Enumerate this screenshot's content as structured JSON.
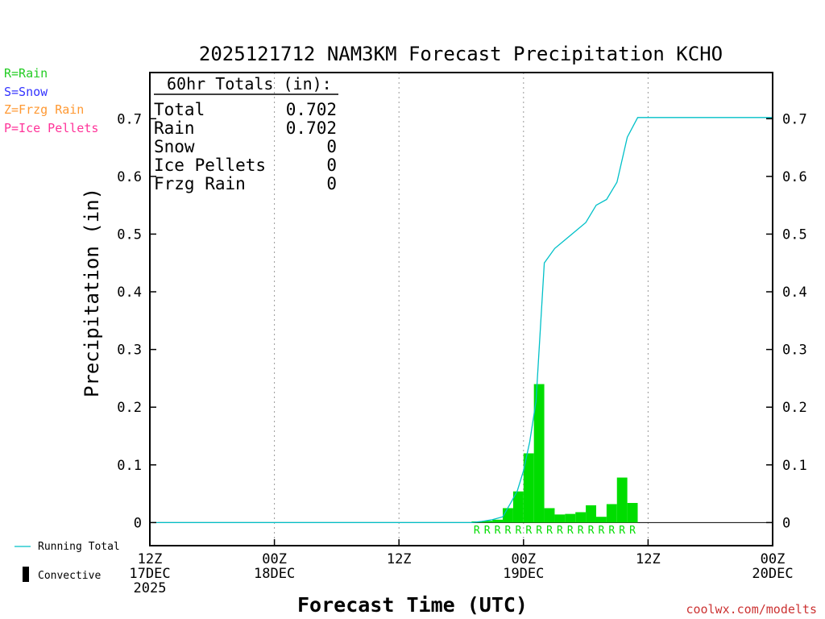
{
  "chart_data": {
    "type": "bar",
    "title": "2025121712 NAM3KM Forecast Precipitation KCHO",
    "xlabel": "Forecast Time (UTC)",
    "ylabel": "Precipitation (in)",
    "ylim": [
      -0.04,
      0.78
    ],
    "xlim_hours": [
      0,
      60
    ],
    "y_ticks": [
      0,
      0.1,
      0.2,
      0.3,
      0.4,
      0.5,
      0.6,
      0.7
    ],
    "y_tick_labels": [
      "0",
      "0.1",
      "0.2",
      "0.3",
      "0.4",
      "0.5",
      "0.6",
      "0.7"
    ],
    "x_ticks": [
      {
        "hour": 0,
        "lines": [
          "12Z",
          "17DEC",
          "2025"
        ]
      },
      {
        "hour": 12,
        "lines": [
          "00Z",
          "18DEC"
        ]
      },
      {
        "hour": 24,
        "lines": [
          "12Z"
        ]
      },
      {
        "hour": 36,
        "lines": [
          "00Z",
          "19DEC"
        ]
      },
      {
        "hour": 48,
        "lines": [
          "12Z"
        ]
      },
      {
        "hour": 60,
        "lines": [
          "00Z",
          "20DEC"
        ]
      }
    ],
    "grid": "vertical dotted",
    "legend": {
      "precip_types": [
        {
          "text": "R=Rain",
          "color": "#22cc22"
        },
        {
          "text": "S=Snow",
          "color": "#3333ff"
        },
        {
          "text": "Z=Frzg Rain",
          "color": "#ff9933"
        },
        {
          "text": "P=Ice Pellets",
          "color": "#ff3399"
        }
      ],
      "running_total_label": "Running Total",
      "convective_label": "Convective"
    },
    "totals_box": {
      "heading": "60hr Totals (in):",
      "rows": [
        {
          "label": "Total",
          "value": "0.702"
        },
        {
          "label": "Rain",
          "value": "0.702"
        },
        {
          "label": "Snow",
          "value": "0"
        },
        {
          "label": "Ice Pellets",
          "value": "0"
        },
        {
          "label": "Frzg Rain",
          "value": "0"
        }
      ]
    },
    "hourly_bars": {
      "hours": [
        32,
        33,
        34,
        35,
        36,
        37,
        38,
        39,
        40,
        41,
        42,
        43,
        44,
        45,
        46,
        47
      ],
      "values": [
        0.002,
        0.003,
        0.005,
        0.025,
        0.054,
        0.12,
        0.24,
        0.025,
        0.014,
        0.015,
        0.018,
        0.03,
        0.01,
        0.032,
        0.078,
        0.034
      ],
      "type_labels": [
        "R",
        "R",
        "R",
        "R",
        "R",
        "R",
        "R",
        "R",
        "R",
        "R",
        "R",
        "R",
        "R",
        "R",
        "R",
        "R"
      ],
      "color": "#00dd00"
    },
    "running_total": {
      "hours": [
        0,
        31,
        32,
        33,
        34,
        34.8,
        35.4,
        36.0,
        36.6,
        37.2,
        38.0,
        39.0,
        40.0,
        41.0,
        42.0,
        43.0,
        44.0,
        45.0,
        46.0,
        47.0,
        60
      ],
      "values": [
        0,
        0,
        0.002,
        0.005,
        0.01,
        0.035,
        0.055,
        0.09,
        0.14,
        0.21,
        0.45,
        0.475,
        0.49,
        0.505,
        0.52,
        0.55,
        0.56,
        0.59,
        0.668,
        0.702,
        0.702
      ],
      "color": "#00c0c8"
    },
    "zero_line_color": "#000000",
    "source_text": "coolwx.com/modelts",
    "source_color": "#cc3333"
  }
}
